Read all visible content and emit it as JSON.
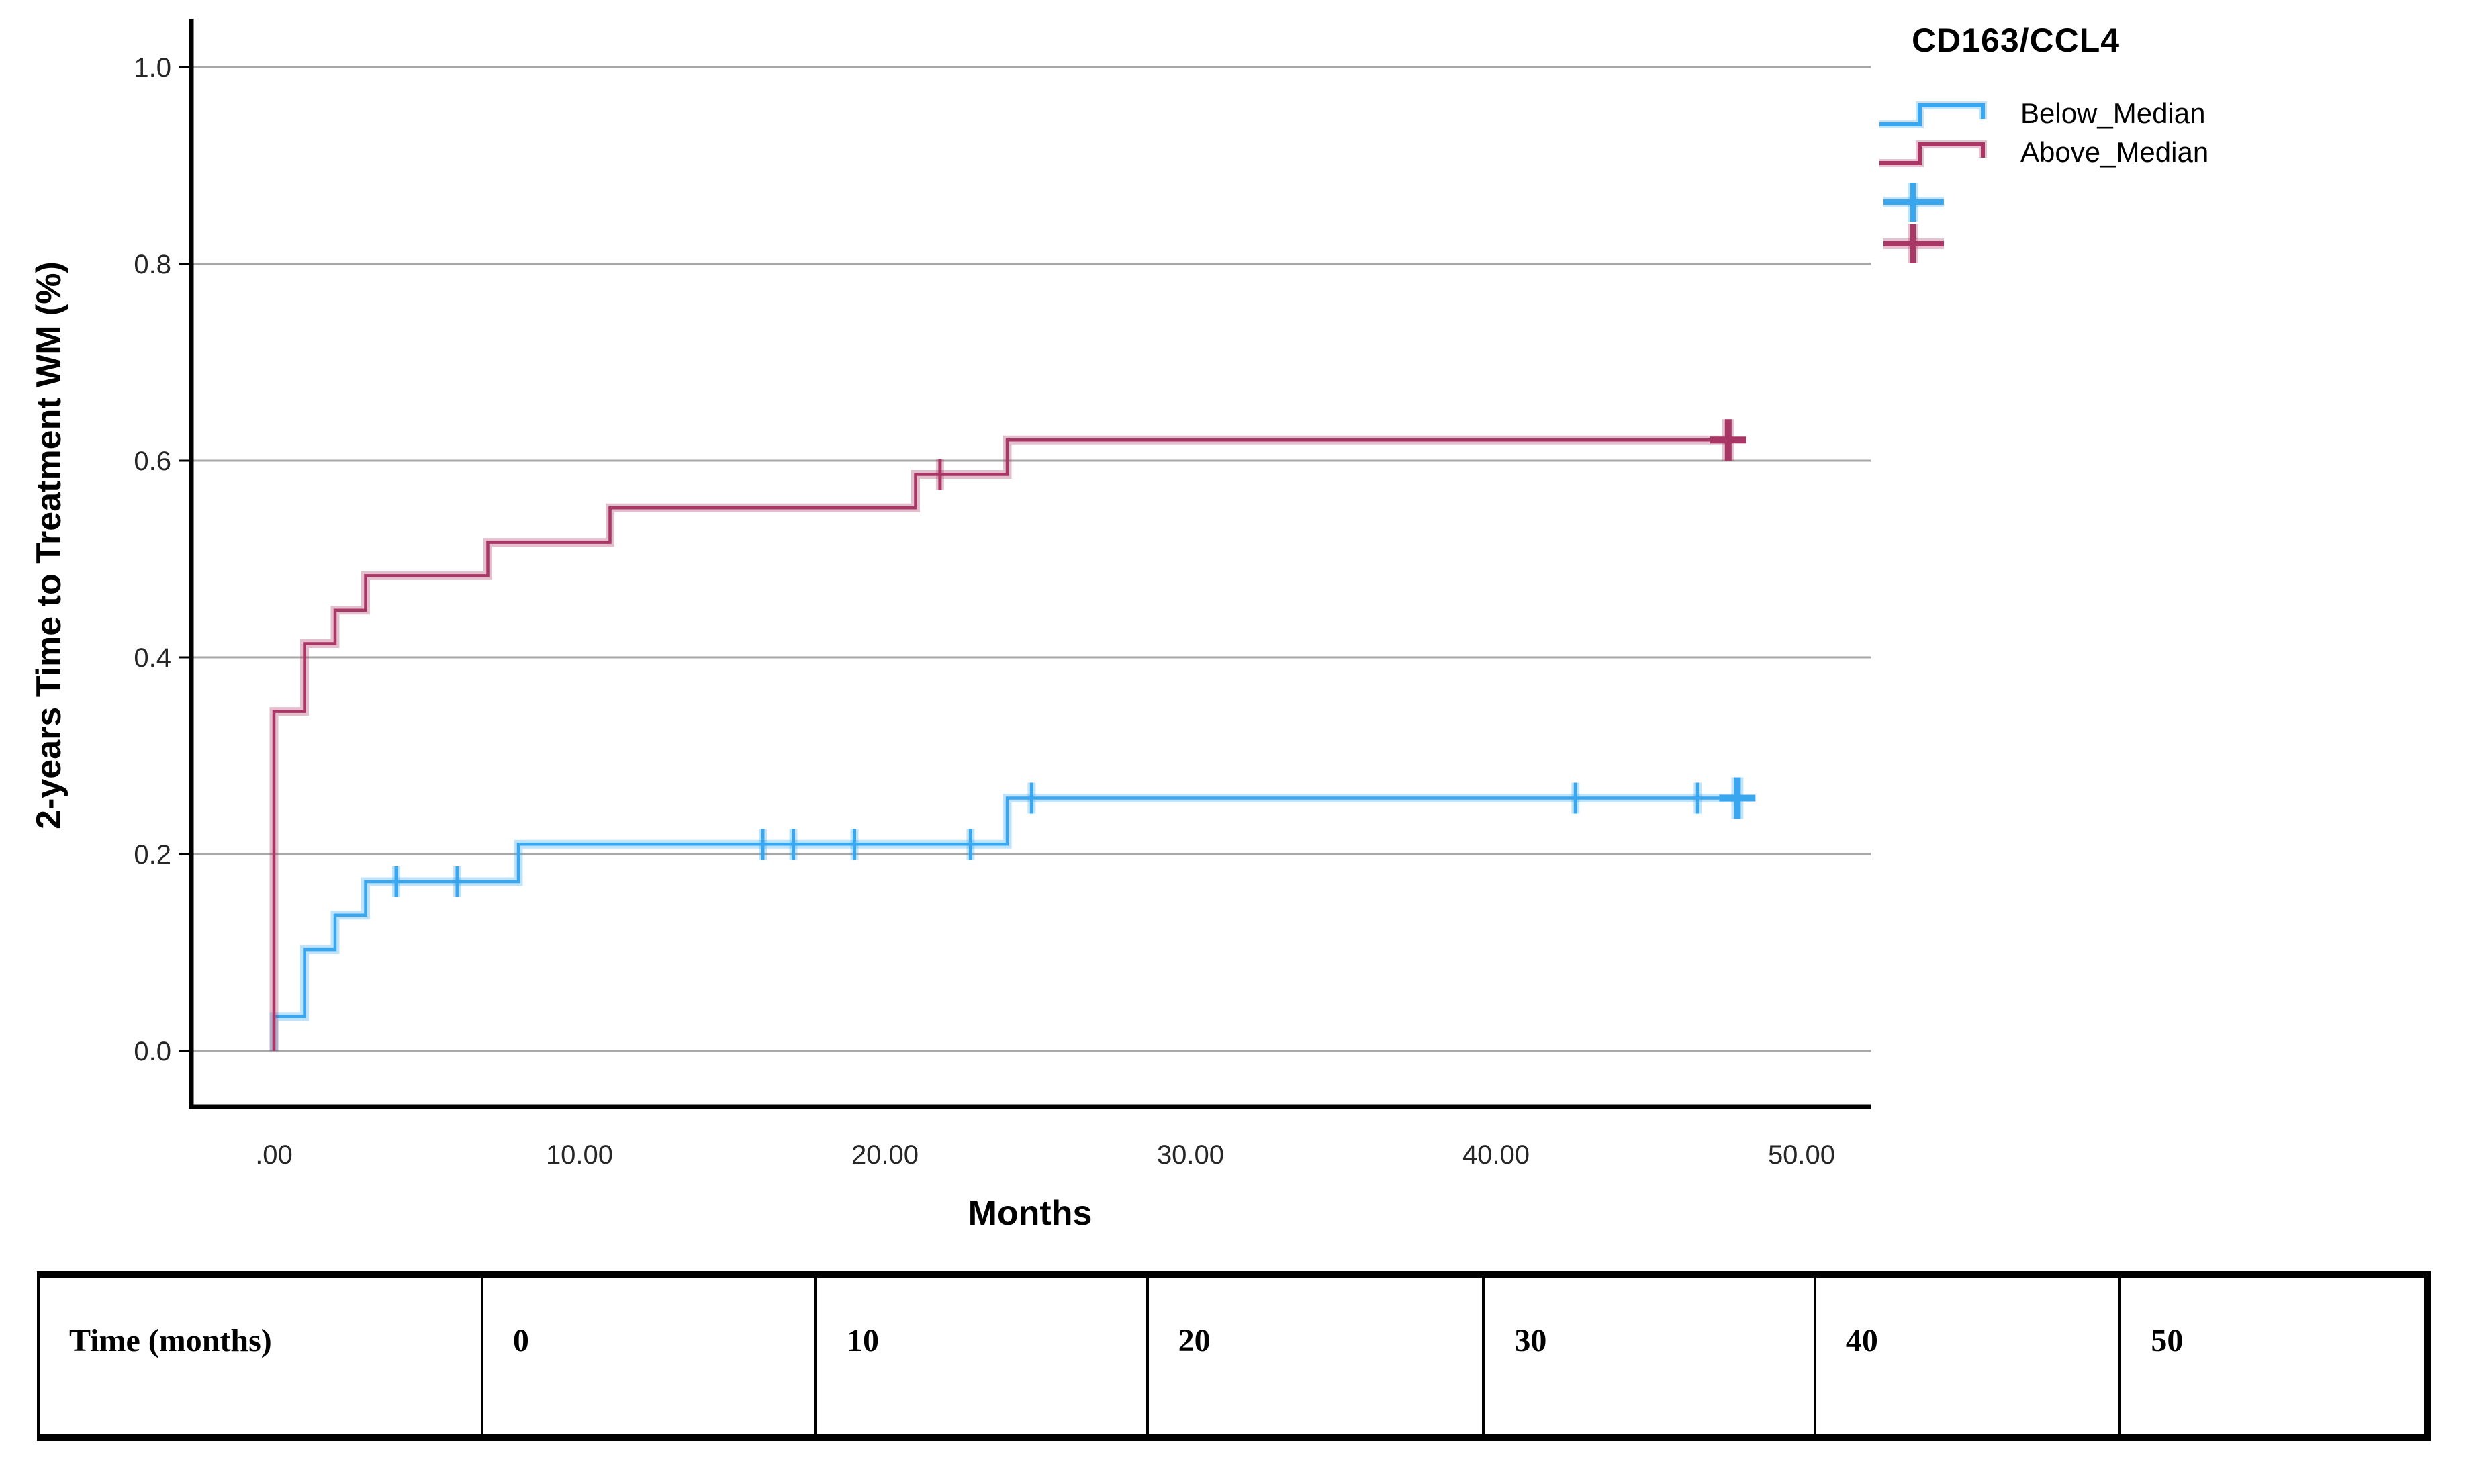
{
  "chart_data": {
    "type": "line",
    "subtype": "kaplan-meier-step",
    "title": "",
    "xlabel": "Months",
    "ylabel": "2-years Time to Treatment WM (%)",
    "x_ticks": [
      ".00",
      "10.00",
      "20.00",
      "30.00",
      "40.00",
      "50.00"
    ],
    "x_tick_values": [
      0,
      10,
      20,
      30,
      40,
      50
    ],
    "y_ticks": [
      "0.0",
      "0.2",
      "0.4",
      "0.6",
      "0.8",
      "1.0"
    ],
    "y_tick_values": [
      0,
      0.2,
      0.4,
      0.6,
      0.8,
      1.0
    ],
    "xlim": [
      -2.7,
      52.3
    ],
    "ylim": [
      0,
      1.05
    ],
    "grid": "horizontal",
    "grid_color": "#a8a8a8",
    "axis_color": "#000000",
    "tick_label_color": "#262626",
    "legend_title": "CD163/CCL4",
    "legend_position": "top-right",
    "series": [
      {
        "name": "Below_Median",
        "color": "#39a7f0",
        "steps": [
          [
            0,
            0
          ],
          [
            0,
            0.035
          ],
          [
            1,
            0.103
          ],
          [
            2,
            0.138
          ],
          [
            3,
            0.172
          ],
          [
            8,
            0.21
          ],
          [
            24,
            0.257
          ],
          [
            47.9,
            0.257
          ]
        ],
        "censors": [
          [
            4,
            0.172
          ],
          [
            6,
            0.172
          ],
          [
            16,
            0.21
          ],
          [
            17,
            0.21
          ],
          [
            19,
            0.21
          ],
          [
            22.8,
            0.21
          ],
          [
            24.8,
            0.257
          ],
          [
            42.6,
            0.257
          ],
          [
            46.6,
            0.257
          ]
        ],
        "end_censor": [
          47.9,
          0.257
        ]
      },
      {
        "name": "Above_Median",
        "color": "#a93766",
        "steps": [
          [
            0,
            0
          ],
          [
            0,
            0.345
          ],
          [
            1,
            0.414
          ],
          [
            2,
            0.448
          ],
          [
            3,
            0.483
          ],
          [
            7,
            0.517
          ],
          [
            11,
            0.552
          ],
          [
            21,
            0.586
          ],
          [
            24,
            0.621
          ],
          [
            47.6,
            0.621
          ]
        ],
        "censors": [
          [
            21.8,
            0.586
          ]
        ],
        "end_censor": [
          47.6,
          0.621
        ]
      }
    ]
  },
  "table": {
    "header": "Time (months)",
    "cells": [
      "0",
      "10",
      "20",
      "30",
      "40",
      "50"
    ]
  }
}
